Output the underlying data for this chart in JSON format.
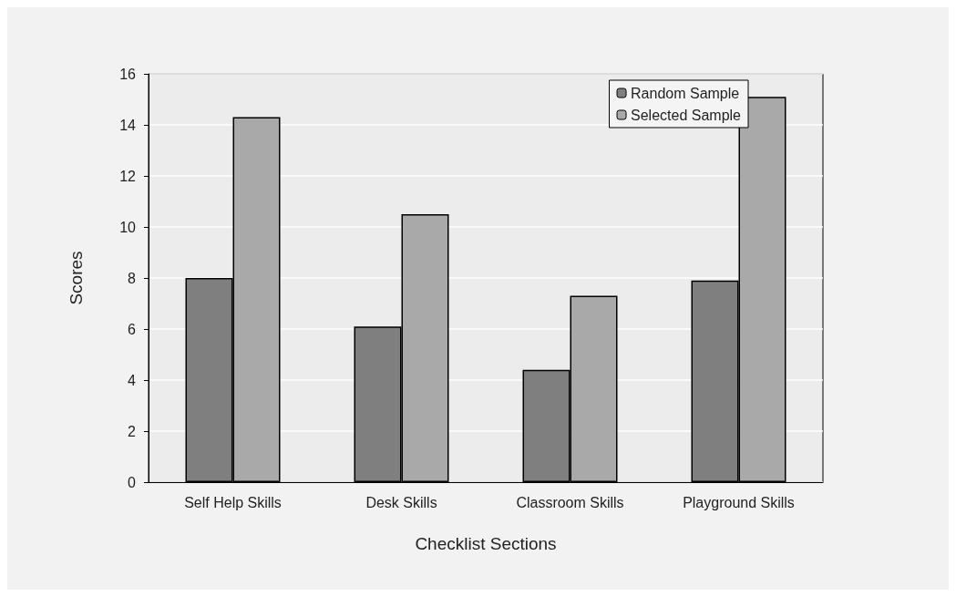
{
  "chart_data": {
    "type": "bar",
    "xlabel": "Checklist Sections",
    "ylabel": "Scores",
    "categories": [
      "Self Help Skills",
      "Desk Skills",
      "Classroom Skills",
      "Playground Skills"
    ],
    "series": [
      {
        "name": "Random Sample",
        "color": "#7f7f7f",
        "values": [
          8.0,
          6.1,
          4.4,
          7.9
        ]
      },
      {
        "name": "Selected Sample",
        "color": "#a9a9a9",
        "values": [
          14.3,
          10.5,
          7.3,
          15.1
        ]
      }
    ],
    "ylim": [
      0,
      16
    ],
    "yticks": [
      0,
      2,
      4,
      6,
      8,
      10,
      12,
      14,
      16
    ],
    "grid": "y",
    "legend": "top right"
  }
}
